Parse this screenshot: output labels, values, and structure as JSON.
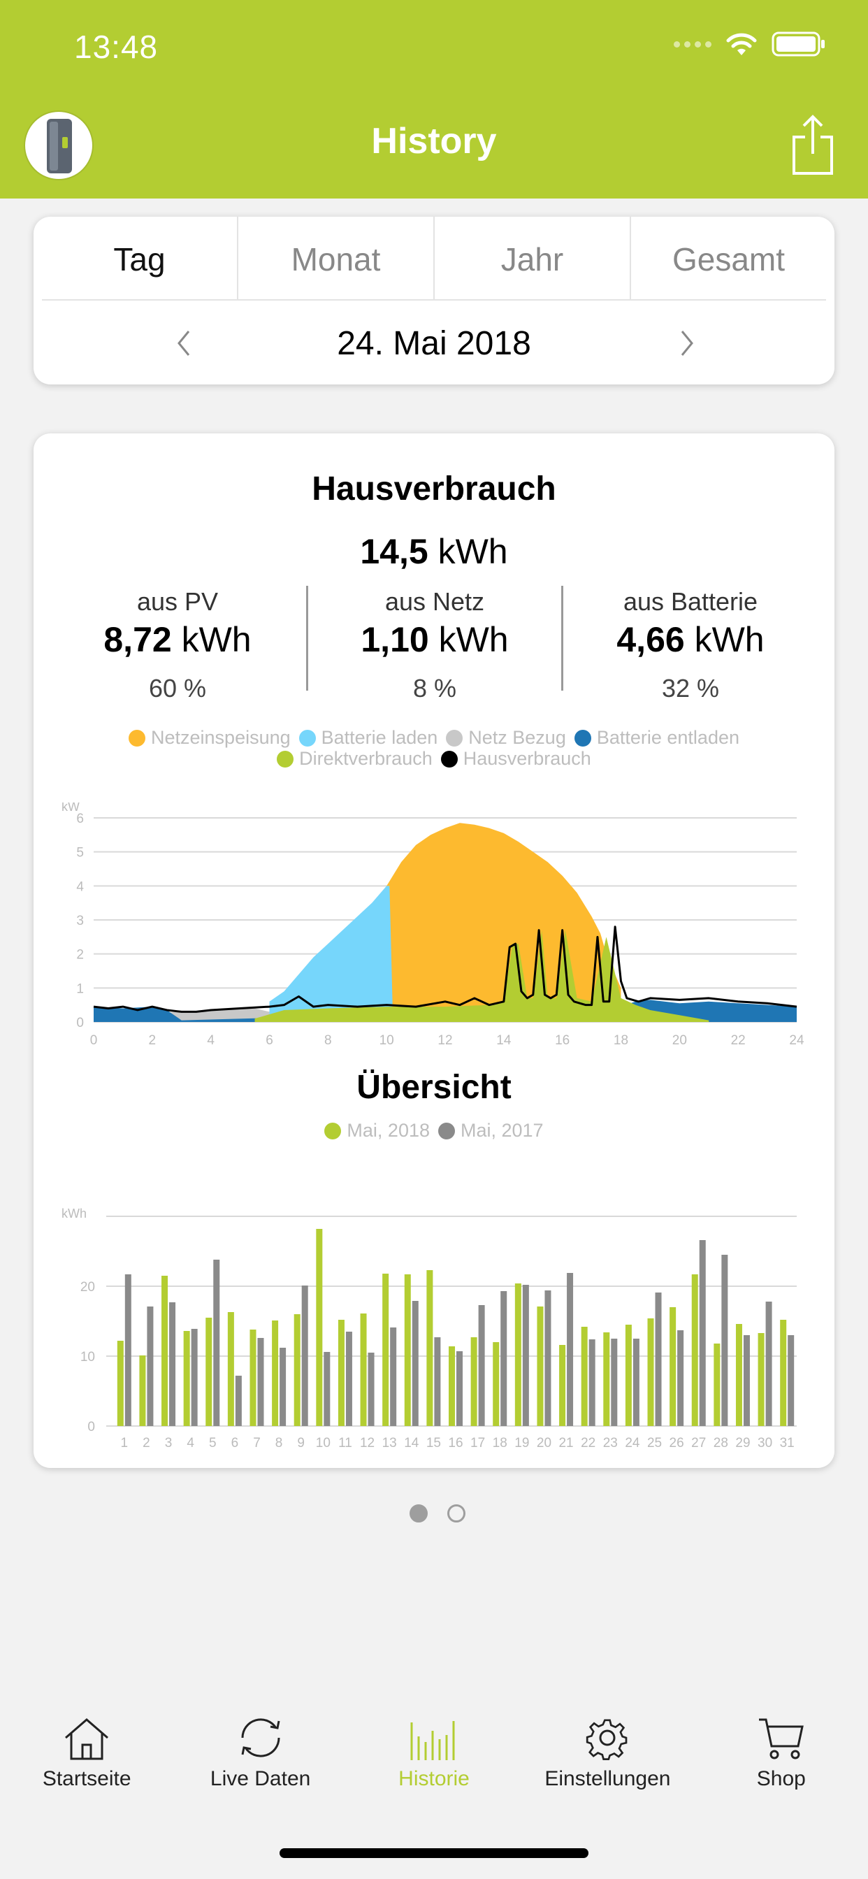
{
  "status_bar": {
    "time": "13:48"
  },
  "header": {
    "title": "History"
  },
  "period_tabs": [
    {
      "label": "Tag",
      "active": true
    },
    {
      "label": "Monat",
      "active": false
    },
    {
      "label": "Jahr",
      "active": false
    },
    {
      "label": "Gesamt",
      "active": false
    }
  ],
  "date_nav": {
    "current": "24. Mai 2018"
  },
  "consumption": {
    "title": "Hausverbrauch",
    "total_value": "14,5",
    "total_unit": "kWh",
    "stats": [
      {
        "label": "aus PV",
        "value": "8,72",
        "unit": "kWh",
        "percent": "60 %"
      },
      {
        "label": "aus Netz",
        "value": "1,10",
        "unit": "kWh",
        "percent": "8 %"
      },
      {
        "label": "aus Batterie",
        "value": "4,66",
        "unit": "kWh",
        "percent": "32 %"
      }
    ]
  },
  "colors": {
    "accent": "#b3cd32",
    "netzeinspeisung": "#fdba2f",
    "batterie_laden": "#76d6fb",
    "netz_bezug": "#c8c8c8",
    "batterie_entladen": "#1f76b4",
    "direktverbrauch": "#b3cd32",
    "hausverbrauch": "#000000",
    "mai_2018": "#b3cd32",
    "mai_2017": "#8a8a8a"
  },
  "day_legend": [
    {
      "label": "Netzeinspeisung",
      "color": "#fdba2f"
    },
    {
      "label": "Batterie laden",
      "color": "#76d6fb"
    },
    {
      "label": "Netz Bezug",
      "color": "#c8c8c8"
    },
    {
      "label": "Batterie entladen",
      "color": "#1f76b4"
    },
    {
      "label": "Direktverbrauch",
      "color": "#b3cd32"
    },
    {
      "label": "Hausverbrauch",
      "color": "#000000"
    }
  ],
  "overview": {
    "title": "Übersicht"
  },
  "month_legend": [
    {
      "label": "Mai, 2018",
      "color": "#b3cd32"
    },
    {
      "label": "Mai, 2017",
      "color": "#8a8a8a"
    }
  ],
  "chart_data": [
    {
      "type": "area",
      "ylabel": "kW",
      "xlim": [
        0,
        24
      ],
      "ylim": [
        0,
        6
      ],
      "x_ticks": [
        "0",
        "2",
        "4",
        "6",
        "8",
        "10",
        "12",
        "14",
        "16",
        "18",
        "20",
        "22",
        "24"
      ],
      "y_ticks": [
        "0",
        "1",
        "2",
        "3",
        "4",
        "5",
        "6"
      ],
      "grid": true,
      "legend_position": "top",
      "series": [
        {
          "name": "Netzeinspeisung",
          "kind": "area",
          "x": [
            10.0,
            10.5,
            11,
            11.5,
            12,
            12.5,
            13,
            13.5,
            14,
            14.5,
            15,
            15.5,
            16,
            16.5,
            17,
            17.3,
            17.5,
            18
          ],
          "y": [
            4.0,
            4.7,
            5.2,
            5.5,
            5.7,
            5.85,
            5.8,
            5.7,
            5.55,
            5.3,
            5.0,
            4.7,
            4.3,
            3.8,
            3.1,
            2.6,
            2.0,
            1.0
          ]
        },
        {
          "name": "Batterie laden",
          "kind": "area",
          "x": [
            6.0,
            6.5,
            7,
            7.5,
            8,
            8.5,
            9,
            9.5,
            10.0,
            10.1,
            10.2
          ],
          "y": [
            0.6,
            0.9,
            1.4,
            1.9,
            2.3,
            2.7,
            3.1,
            3.5,
            4.0,
            4.0,
            0.6
          ]
        },
        {
          "name": "Netz Bezug",
          "kind": "area",
          "x": [
            0,
            2,
            3,
            4,
            5,
            5.5,
            6
          ],
          "y": [
            0.2,
            0.25,
            0.3,
            0.35,
            0.4,
            0.4,
            0.3
          ]
        },
        {
          "name": "Batterie entladen",
          "kind": "area",
          "x": [
            0,
            1,
            2,
            2.5,
            3,
            17.8,
            18.5,
            19,
            20,
            21,
            22,
            23,
            24
          ],
          "y": [
            0.45,
            0.4,
            0.45,
            0.35,
            0.05,
            0.4,
            0.6,
            0.65,
            0.55,
            0.6,
            0.55,
            0.5,
            0.45
          ]
        },
        {
          "name": "Direktverbrauch",
          "kind": "area",
          "x": [
            5.5,
            6.5,
            8,
            10,
            12,
            13.5,
            14,
            14.3,
            14.5,
            14.8,
            15,
            15.3,
            15.5,
            15.8,
            16.1,
            16.5,
            17,
            17.5,
            18,
            18.5,
            19,
            20,
            21
          ],
          "y": [
            0.1,
            0.35,
            0.4,
            0.45,
            0.45,
            0.5,
            0.6,
            2.3,
            2.3,
            0.7,
            0.7,
            2.7,
            0.7,
            0.7,
            2.7,
            0.7,
            0.6,
            2.5,
            0.7,
            0.5,
            0.35,
            0.2,
            0.05
          ]
        },
        {
          "name": "Hausverbrauch",
          "kind": "line",
          "x": [
            0,
            0.5,
            1,
            1.5,
            2,
            2.5,
            3,
            3.5,
            4,
            5,
            6,
            6.5,
            7,
            7.5,
            8,
            9,
            10,
            11,
            12,
            12.5,
            13,
            13.5,
            14,
            14.2,
            14.4,
            14.6,
            14.8,
            15,
            15.2,
            15.4,
            15.6,
            15.8,
            16,
            16.2,
            16.4,
            16.8,
            17,
            17.2,
            17.4,
            17.6,
            17.8,
            18,
            18.2,
            18.6,
            19,
            20,
            21,
            22,
            23,
            24
          ],
          "y": [
            0.45,
            0.4,
            0.45,
            0.35,
            0.45,
            0.35,
            0.3,
            0.3,
            0.35,
            0.4,
            0.45,
            0.5,
            0.75,
            0.45,
            0.5,
            0.45,
            0.5,
            0.45,
            0.6,
            0.5,
            0.7,
            0.5,
            0.6,
            2.2,
            2.3,
            0.9,
            0.7,
            0.8,
            2.7,
            0.8,
            0.7,
            0.8,
            2.7,
            0.8,
            0.6,
            0.5,
            0.5,
            2.5,
            0.6,
            0.6,
            2.8,
            1.2,
            0.7,
            0.6,
            0.7,
            0.65,
            0.7,
            0.6,
            0.55,
            0.45
          ]
        }
      ]
    },
    {
      "type": "bar",
      "ylabel": "kWh",
      "ylim": [
        0,
        30
      ],
      "y_ticks": [
        "0",
        "10",
        "20"
      ],
      "grid": true,
      "legend_position": "top",
      "categories": [
        "1",
        "2",
        "3",
        "4",
        "5",
        "6",
        "7",
        "8",
        "9",
        "10",
        "11",
        "12",
        "13",
        "14",
        "15",
        "16",
        "17",
        "18",
        "19",
        "20",
        "21",
        "22",
        "23",
        "24",
        "25",
        "26",
        "27",
        "28",
        "29",
        "30",
        "31"
      ],
      "series": [
        {
          "name": "Mai, 2018",
          "values": [
            12.2,
            10.1,
            21.5,
            13.6,
            15.5,
            16.3,
            13.8,
            15.1,
            16.0,
            28.2,
            15.2,
            16.1,
            21.8,
            21.7,
            22.3,
            11.4,
            12.7,
            12.0,
            20.4,
            17.1,
            11.6,
            14.2,
            13.4,
            14.5,
            15.4,
            17.0,
            21.7,
            11.8,
            14.6,
            13.3,
            15.2
          ]
        },
        {
          "name": "Mai, 2017",
          "values": [
            21.7,
            17.1,
            17.7,
            13.9,
            23.8,
            7.2,
            12.6,
            11.2,
            20.1,
            10.6,
            13.5,
            10.5,
            14.1,
            17.9,
            12.7,
            10.7,
            17.3,
            19.3,
            20.2,
            19.4,
            21.9,
            12.4,
            12.5,
            12.5,
            19.1,
            13.7,
            26.6,
            24.5,
            13.0,
            17.8,
            13.0
          ]
        }
      ]
    }
  ],
  "pager": {
    "count": 2,
    "active": 0
  },
  "tab_bar": [
    {
      "label": "Startseite",
      "icon": "house-icon",
      "active": false
    },
    {
      "label": "Live Daten",
      "icon": "refresh-icon",
      "active": false
    },
    {
      "label": "Historie",
      "icon": "history-bars-icon",
      "active": true
    },
    {
      "label": "Einstellungen",
      "icon": "gear-icon",
      "active": false
    },
    {
      "label": "Shop",
      "icon": "cart-icon",
      "active": false
    }
  ]
}
